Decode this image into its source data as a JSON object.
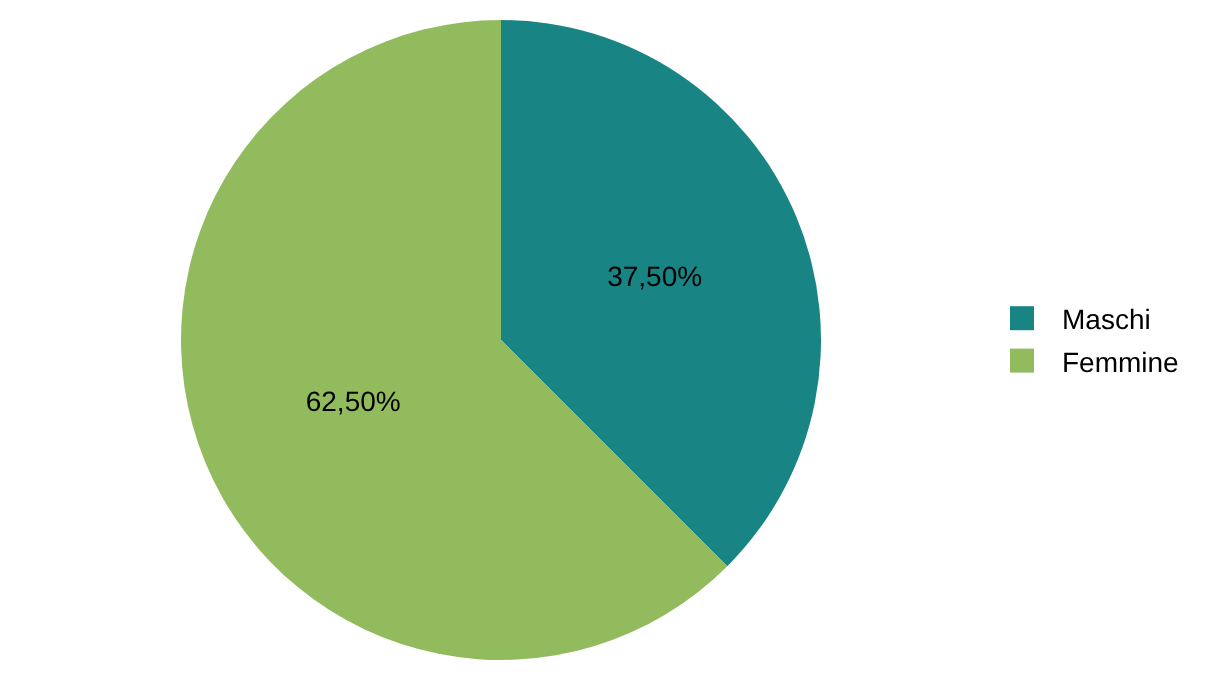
{
  "chart_data": {
    "type": "pie",
    "categories": [
      "Maschi",
      "Femmine"
    ],
    "values": [
      37.5,
      62.5
    ],
    "colors": [
      "#188484",
      "#92bb5e"
    ],
    "value_labels": [
      "37,50%",
      "62,50%"
    ],
    "legend": "right"
  }
}
